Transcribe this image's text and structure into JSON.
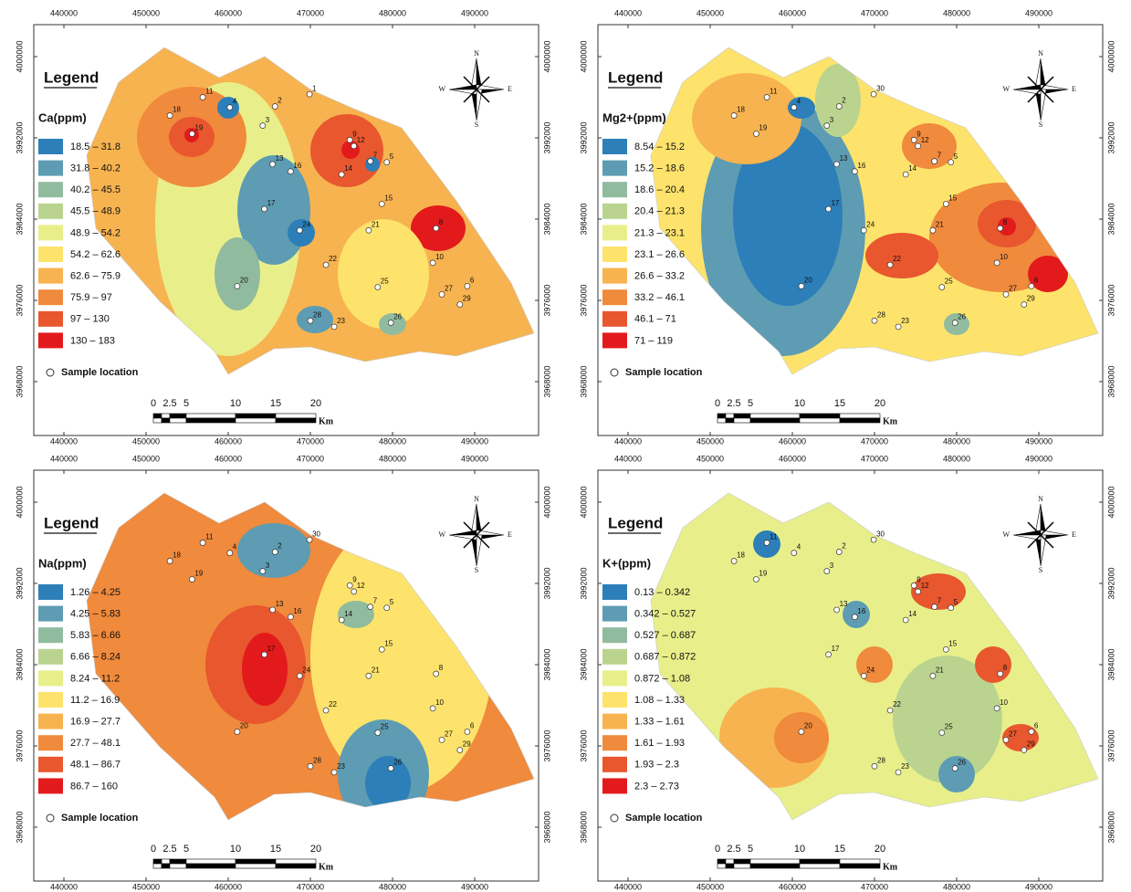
{
  "panels": [
    {
      "legend_title": "Legend",
      "parameter": "Ca(ppm)",
      "classes": [
        "18.5 – 31.8",
        "31.8 – 40.2",
        "40.2 – 45.5",
        "45.5 – 48.9",
        "48.9 – 54.2",
        "54.2 – 62.6",
        "62.6 – 75.9",
        "75.9 – 97",
        "97 – 130",
        "130 – 183"
      ],
      "sample_label": "Sample location",
      "sample_ids": [
        "1",
        "2",
        "3",
        "4",
        "5",
        "6",
        "7",
        "8",
        "9",
        "10",
        "11",
        "12",
        "13",
        "14",
        "15",
        "16",
        "17",
        "18",
        "19",
        "20",
        "21",
        "22",
        "23",
        "24",
        "25",
        "26",
        "27",
        "28",
        "29"
      ]
    },
    {
      "legend_title": "Legend",
      "parameter": "Mg2+(ppm)",
      "classes": [
        "8.54 – 15.2",
        "15.2 – 18.6",
        "18.6 – 20.4",
        "20.4 – 21.3",
        "21.3 – 23.1",
        "23.1 – 26.6",
        "26.6 – 33.2",
        "33.2 – 46.1",
        "46.1 – 71",
        "71 – 119"
      ],
      "sample_label": "Sample location",
      "sample_ids": [
        "30",
        "2",
        "3",
        "4",
        "5",
        "6",
        "7",
        "8",
        "9",
        "10",
        "11",
        "12",
        "13",
        "14",
        "15",
        "16",
        "17",
        "18",
        "19",
        "20",
        "21",
        "22",
        "23",
        "24",
        "25",
        "26",
        "27",
        "28",
        "29"
      ]
    },
    {
      "legend_title": "Legend",
      "parameter": "Na(ppm)",
      "classes": [
        "1.26 – 4.25",
        "4.25 – 5.83",
        "5.83 – 6.66",
        "6.66 – 8.24",
        "8.24 – 11.2",
        "11.2 – 16.9",
        "16.9 – 27.7",
        "27.7 – 48.1",
        "48.1 – 86.7",
        "86.7 – 160"
      ],
      "sample_label": "Sample location",
      "sample_ids": [
        "30",
        "2",
        "3",
        "4",
        "5",
        "6",
        "7",
        "8",
        "9",
        "10",
        "11",
        "12",
        "13",
        "14",
        "15",
        "16",
        "17",
        "18",
        "19",
        "20",
        "21",
        "22",
        "23",
        "24",
        "25",
        "26",
        "27",
        "28",
        "29"
      ]
    },
    {
      "legend_title": "Legend",
      "parameter": "K+(ppm)",
      "classes": [
        "0.13 – 0.342",
        "0.342 – 0.527",
        "0.527 – 0.687",
        "0.687 – 0.872",
        "0.872 – 1.08",
        "1.08 – 1.33",
        "1.33 – 1.61",
        "1.61 – 1.93",
        "1.93 – 2.3",
        "2.3 – 2.73"
      ],
      "sample_label": "Sample location",
      "sample_ids": [
        "30",
        "2",
        "3",
        "4",
        "5",
        "6",
        "7",
        "8",
        "9",
        "10",
        "11",
        "12",
        "13",
        "14",
        "15",
        "16",
        "17",
        "18",
        "19",
        "20",
        "21",
        "22",
        "23",
        "24",
        "25",
        "26",
        "27",
        "28",
        "29"
      ]
    }
  ],
  "x_ticks": [
    440000,
    450000,
    460000,
    470000,
    480000,
    490000
  ],
  "y_ticks": [
    3968000,
    3976000,
    3984000,
    3992000,
    4000000
  ],
  "scale_labels": [
    "0",
    "2.5",
    "5",
    "10",
    "15",
    "20"
  ],
  "scale_unit": "Km",
  "compass": {
    "n": "N",
    "e": "E",
    "s": "S",
    "w": "W"
  },
  "class_colors": [
    "#2c7fb8",
    "#5d9cb3",
    "#91bb9f",
    "#bad48f",
    "#e8ef8a",
    "#fde36c",
    "#f7b34f",
    "#f08a3c",
    "#e8572e",
    "#e31a1c"
  ],
  "sample_easting": [
    469900,
    465700,
    464200,
    460200,
    479300,
    489100,
    477300,
    485300,
    474800,
    484900,
    456900,
    475300,
    465400,
    473800,
    478700,
    467600,
    464400,
    452900,
    455600,
    461100,
    477100,
    471900,
    472900,
    468700,
    478200,
    479800,
    486000,
    470000,
    488200
  ],
  "sample_northing": [
    3996300,
    3995100,
    3993200,
    3995000,
    3989600,
    3977400,
    3989700,
    3983100,
    3991800,
    3979700,
    3996000,
    3991200,
    3989400,
    3988400,
    3985500,
    3988700,
    3985000,
    3994200,
    3992400,
    3977400,
    3982900,
    3979500,
    3973400,
    3982900,
    3977300,
    3973800,
    3976600,
    3974000,
    3975600
  ]
}
